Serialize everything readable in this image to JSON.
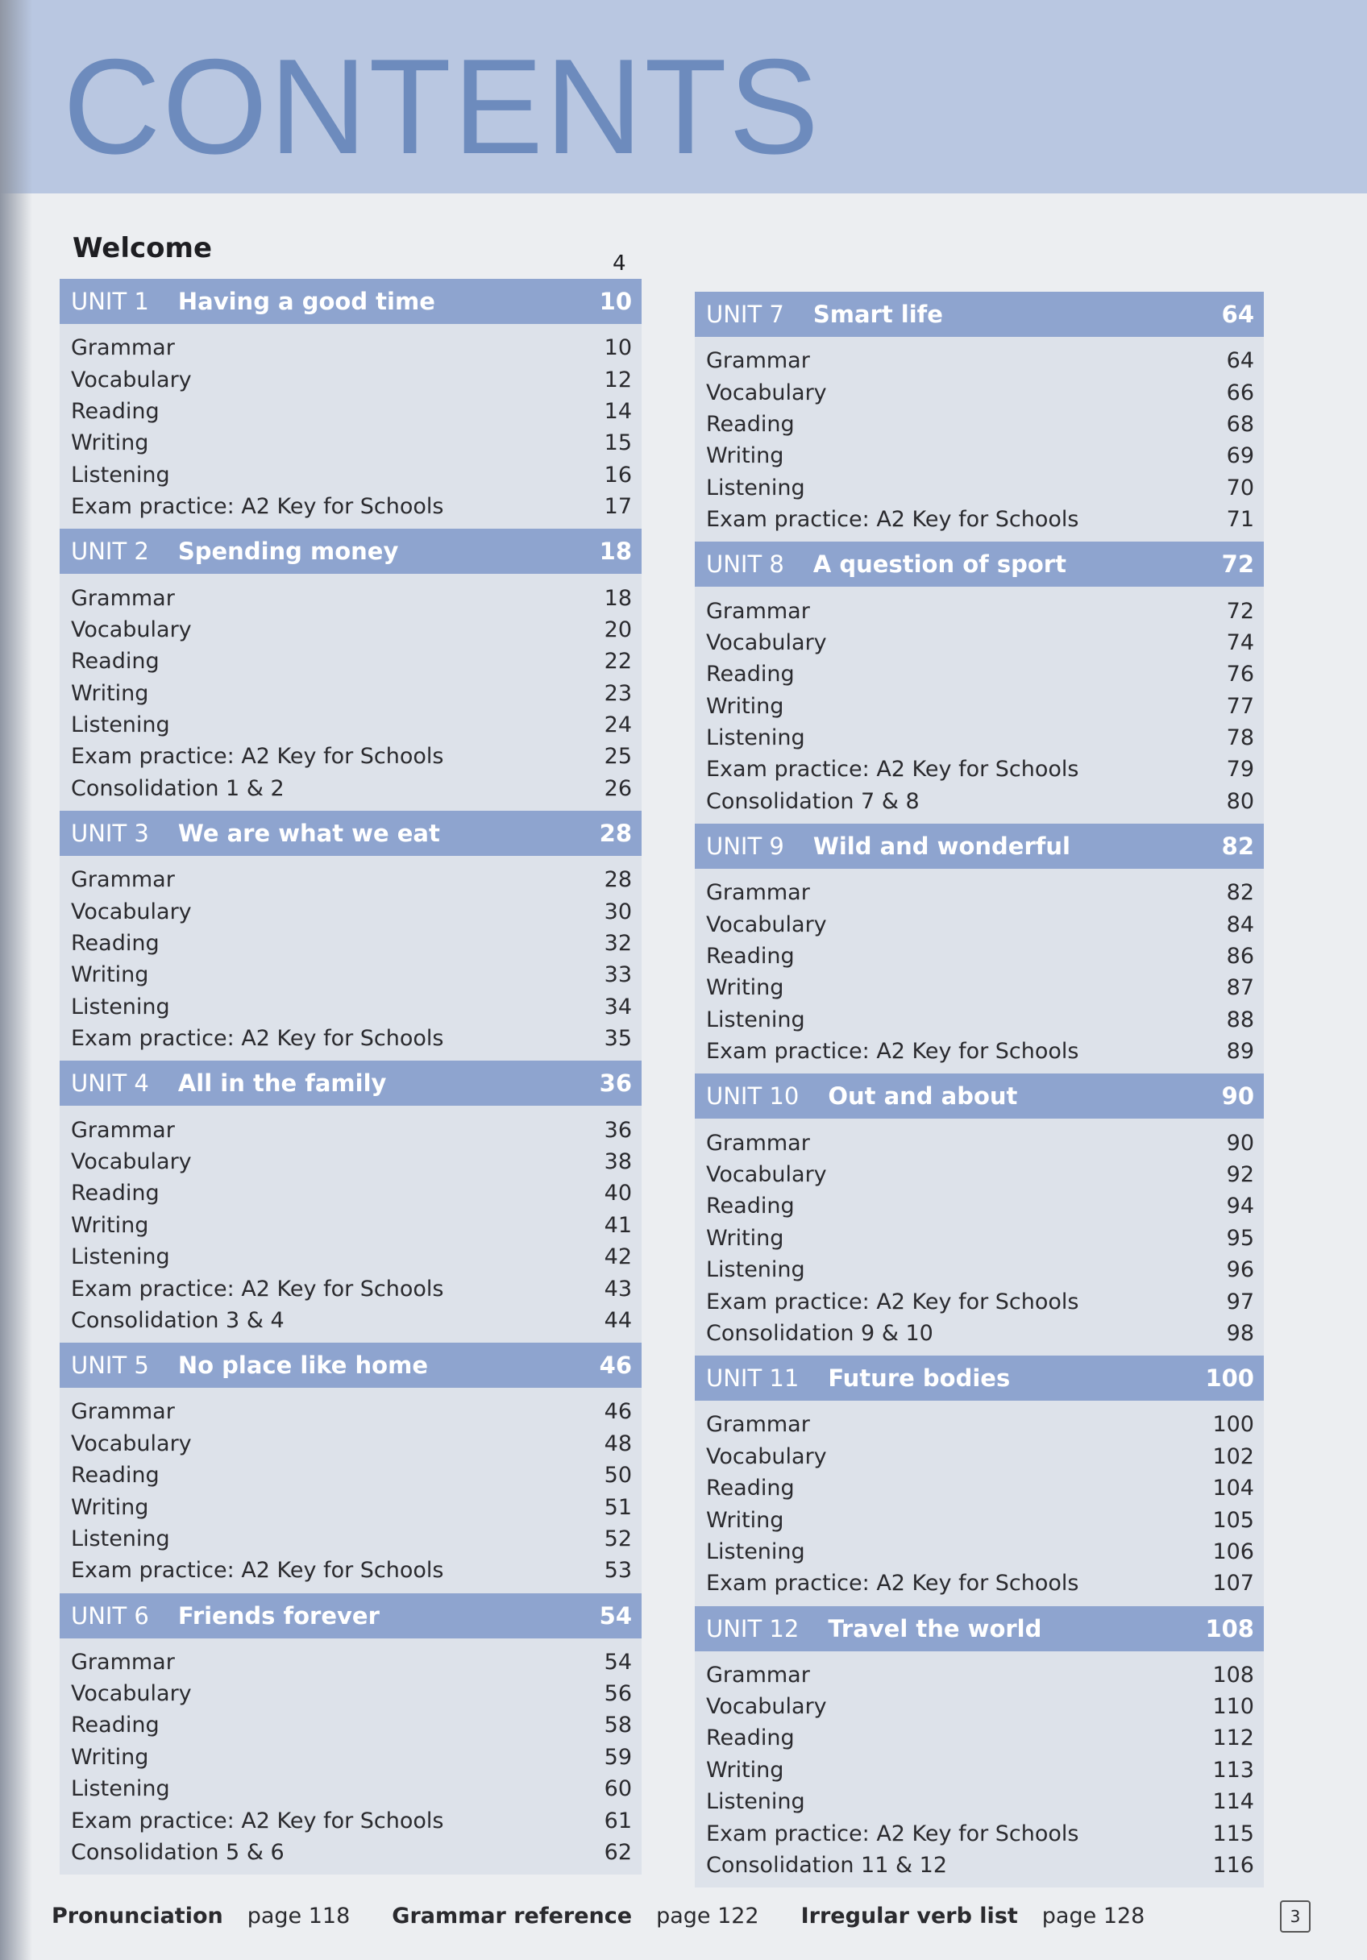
{
  "title": "CONTENTS",
  "welcome": {
    "label": "Welcome",
    "page": "4"
  },
  "left_units": [
    {
      "unit": "UNIT 1",
      "name": "Having a good time",
      "page": "10",
      "rows": [
        [
          "Grammar",
          "10"
        ],
        [
          "Vocabulary",
          "12"
        ],
        [
          "Reading",
          "14"
        ],
        [
          "Writing",
          "15"
        ],
        [
          "Listening",
          "16"
        ],
        [
          "Exam practice: A2 Key for Schools",
          "17"
        ]
      ]
    },
    {
      "unit": "UNIT 2",
      "name": "Spending money",
      "page": "18",
      "rows": [
        [
          "Grammar",
          "18"
        ],
        [
          "Vocabulary",
          "20"
        ],
        [
          "Reading",
          "22"
        ],
        [
          "Writing",
          "23"
        ],
        [
          "Listening",
          "24"
        ],
        [
          "Exam practice: A2 Key for Schools",
          "25"
        ],
        [
          "Consolidation 1 & 2",
          "26"
        ]
      ]
    },
    {
      "unit": "UNIT 3",
      "name": "We are what we eat",
      "page": "28",
      "rows": [
        [
          "Grammar",
          "28"
        ],
        [
          "Vocabulary",
          "30"
        ],
        [
          "Reading",
          "32"
        ],
        [
          "Writing",
          "33"
        ],
        [
          "Listening",
          "34"
        ],
        [
          "Exam practice: A2 Key for Schools",
          "35"
        ]
      ]
    },
    {
      "unit": "UNIT 4",
      "name": "All in the family",
      "page": "36",
      "rows": [
        [
          "Grammar",
          "36"
        ],
        [
          "Vocabulary",
          "38"
        ],
        [
          "Reading",
          "40"
        ],
        [
          "Writing",
          "41"
        ],
        [
          "Listening",
          "42"
        ],
        [
          "Exam practice: A2 Key for Schools",
          "43"
        ],
        [
          "Consolidation 3 & 4",
          "44"
        ]
      ]
    },
    {
      "unit": "UNIT 5",
      "name": "No place like home",
      "page": "46",
      "rows": [
        [
          "Grammar",
          "46"
        ],
        [
          "Vocabulary",
          "48"
        ],
        [
          "Reading",
          "50"
        ],
        [
          "Writing",
          "51"
        ],
        [
          "Listening",
          "52"
        ],
        [
          "Exam practice: A2 Key for Schools",
          "53"
        ]
      ]
    },
    {
      "unit": "UNIT 6",
      "name": "Friends forever",
      "page": "54",
      "rows": [
        [
          "Grammar",
          "54"
        ],
        [
          "Vocabulary",
          "56"
        ],
        [
          "Reading",
          "58"
        ],
        [
          "Writing",
          "59"
        ],
        [
          "Listening",
          "60"
        ],
        [
          "Exam practice: A2 Key for Schools",
          "61"
        ],
        [
          "Consolidation 5 & 6",
          "62"
        ]
      ]
    }
  ],
  "right_units": [
    {
      "unit": "UNIT 7",
      "name": "Smart life",
      "page": "64",
      "rows": [
        [
          "Grammar",
          "64"
        ],
        [
          "Vocabulary",
          "66"
        ],
        [
          "Reading",
          "68"
        ],
        [
          "Writing",
          "69"
        ],
        [
          "Listening",
          "70"
        ],
        [
          "Exam practice: A2 Key for Schools",
          "71"
        ]
      ]
    },
    {
      "unit": "UNIT 8",
      "name": "A question of sport",
      "page": "72",
      "rows": [
        [
          "Grammar",
          "72"
        ],
        [
          "Vocabulary",
          "74"
        ],
        [
          "Reading",
          "76"
        ],
        [
          "Writing",
          "77"
        ],
        [
          "Listening",
          "78"
        ],
        [
          "Exam practice: A2 Key for Schools",
          "79"
        ],
        [
          "Consolidation 7 & 8",
          "80"
        ]
      ]
    },
    {
      "unit": "UNIT 9",
      "name": "Wild and wonderful",
      "page": "82",
      "rows": [
        [
          "Grammar",
          "82"
        ],
        [
          "Vocabulary",
          "84"
        ],
        [
          "Reading",
          "86"
        ],
        [
          "Writing",
          "87"
        ],
        [
          "Listening",
          "88"
        ],
        [
          "Exam practice: A2 Key for Schools",
          "89"
        ]
      ]
    },
    {
      "unit": "UNIT 10",
      "name": "Out and about",
      "page": "90",
      "rows": [
        [
          "Grammar",
          "90"
        ],
        [
          "Vocabulary",
          "92"
        ],
        [
          "Reading",
          "94"
        ],
        [
          "Writing",
          "95"
        ],
        [
          "Listening",
          "96"
        ],
        [
          "Exam practice: A2 Key for Schools",
          "97"
        ],
        [
          "Consolidation 9 & 10",
          "98"
        ]
      ]
    },
    {
      "unit": "UNIT 11",
      "name": "Future bodies",
      "page": "100",
      "rows": [
        [
          "Grammar",
          "100"
        ],
        [
          "Vocabulary",
          "102"
        ],
        [
          "Reading",
          "104"
        ],
        [
          "Writing",
          "105"
        ],
        [
          "Listening",
          "106"
        ],
        [
          "Exam practice: A2 Key for Schools",
          "107"
        ]
      ]
    },
    {
      "unit": "UNIT 12",
      "name": "Travel the world",
      "page": "108",
      "rows": [
        [
          "Grammar",
          "108"
        ],
        [
          "Vocabulary",
          "110"
        ],
        [
          "Reading",
          "112"
        ],
        [
          "Writing",
          "113"
        ],
        [
          "Listening",
          "114"
        ],
        [
          "Exam practice: A2 Key for Schools",
          "115"
        ],
        [
          "Consolidation 11 & 12",
          "116"
        ]
      ]
    }
  ],
  "footer": [
    {
      "label": "Pronunciation",
      "page": "page 118"
    },
    {
      "label": "Grammar reference",
      "page": "page 122"
    },
    {
      "label": "Irregular verb list",
      "page": "page 128"
    }
  ],
  "page_number": "3",
  "colors": {
    "band": "#b9c7e1",
    "title": "#6d8bbd",
    "unit_header": "#8ea4cf",
    "unit_body": "#dde2ea"
  }
}
